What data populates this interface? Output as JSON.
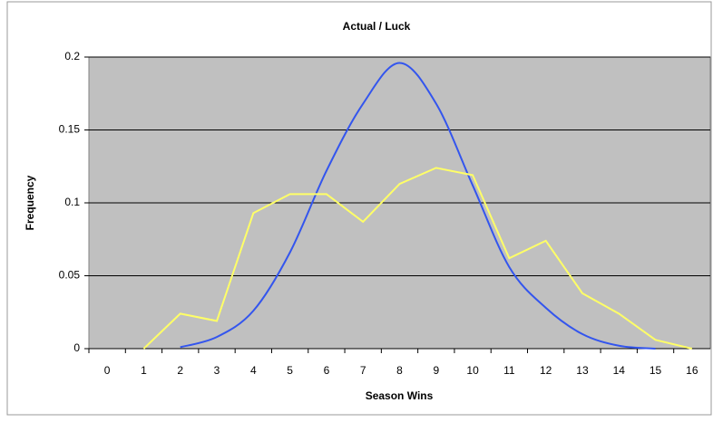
{
  "chart_data": {
    "type": "line",
    "title": "Actual / Luck",
    "x_label": "Season Wins",
    "y_label": "Frequency",
    "categories": [
      "0",
      "1",
      "2",
      "3",
      "4",
      "5",
      "6",
      "7",
      "8",
      "9",
      "10",
      "11",
      "12",
      "13",
      "14",
      "15",
      "16"
    ],
    "series": [
      {
        "color": "#3355ee",
        "smooth": true,
        "values": [
          null,
          null,
          0.001,
          0.008,
          0.026,
          0.066,
          0.122,
          0.168,
          0.196,
          0.168,
          0.112,
          0.056,
          0.028,
          0.01,
          0.002,
          0,
          null
        ]
      },
      {
        "color": "#ffff66",
        "smooth": false,
        "values": [
          null,
          0,
          0.024,
          0.019,
          0.093,
          0.106,
          0.106,
          0.087,
          0.113,
          0.124,
          0.119,
          0.062,
          0.074,
          0.038,
          0.024,
          0.006,
          0
        ]
      }
    ],
    "ylim": [
      0,
      0.2
    ],
    "yticks": [
      0,
      0.05,
      0.1,
      0.15,
      0.2
    ],
    "grid": true,
    "plot_color": "#c0c0c0"
  }
}
